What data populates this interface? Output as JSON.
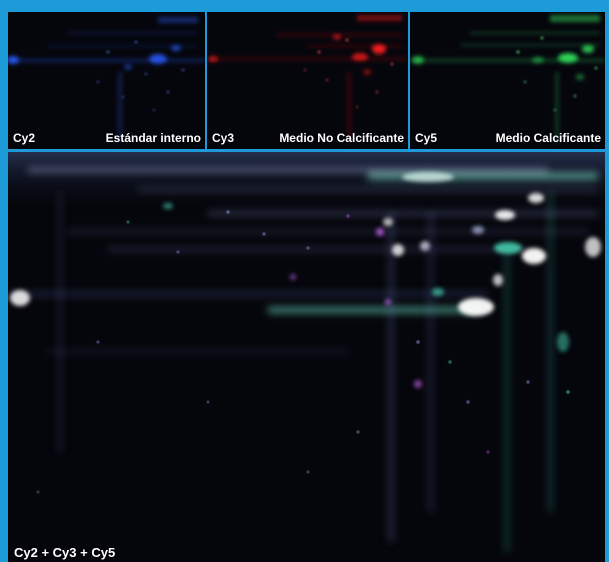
{
  "panels": {
    "cy2": {
      "channel": "Cy2",
      "description": "Estándar interno",
      "color": "#2a5cff"
    },
    "cy3": {
      "channel": "Cy3",
      "description": "Medio No Calcificante",
      "color": "#ff1a1a"
    },
    "cy5": {
      "channel": "Cy5",
      "description": "Medio Calcificante",
      "color": "#2fdc5a"
    },
    "merge": {
      "label": "Cy2 + Cy3 + Cy5"
    }
  },
  "colors": {
    "border": "#1d9bd8",
    "background": "#05060c",
    "merge_spot_white": "#ffffff",
    "merge_spot_cyan": "#4ff0c8",
    "merge_spot_magenta": "#d36bff"
  }
}
